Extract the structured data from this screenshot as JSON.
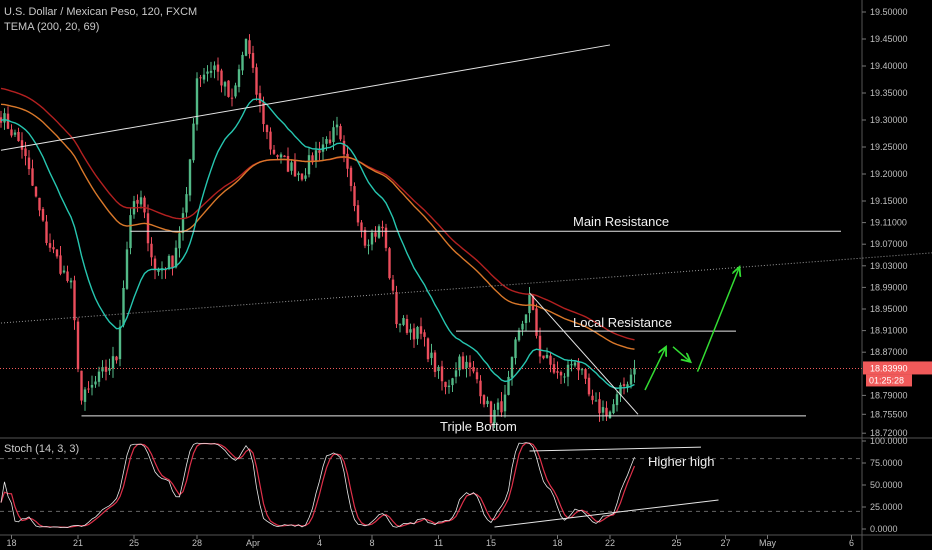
{
  "header": {
    "title": "U.S. Dollar / Mexican Peso, 120, FXCM",
    "indicator": "TEMA (200, 20, 69)"
  },
  "stoch_label": "Stoch (14, 3, 3)",
  "colors": {
    "bull": "#53b987",
    "bear": "#eb4d5c",
    "fast": "#26c6b0",
    "mid": "#d9782a",
    "slow": "#b32020",
    "stoch_k": "#e8e8e8",
    "stoch_d": "#e0304a",
    "arrow": "#33dd33",
    "price": "#f05a5a"
  },
  "chart_data": {
    "type": "candlestick",
    "symbol": "USDMXN",
    "timeframe": "120",
    "price_ticks": [
      "19.50000",
      "19.45000",
      "19.40000",
      "19.35000",
      "19.30000",
      "19.25000",
      "19.20000",
      "19.15000",
      "19.11000",
      "19.07000",
      "19.03000",
      "18.99000",
      "18.95000",
      "18.91000",
      "18.87000",
      "18.79000",
      "18.75500",
      "18.72000"
    ],
    "price_tick_values": [
      19.5,
      19.45,
      19.4,
      19.35,
      19.3,
      19.25,
      19.2,
      19.15,
      19.11,
      19.07,
      19.03,
      18.99,
      18.95,
      18.91,
      18.87,
      18.79,
      18.755,
      18.72
    ],
    "ylim": [
      18.7,
      19.52
    ],
    "current_price": "18.83990",
    "current_price_value": 18.8399,
    "countdown": "01:25:28",
    "x_ticks": [
      "18",
      "21",
      "25",
      "28",
      "Apr",
      "4",
      "8",
      "11",
      "15",
      "18",
      "22",
      "25",
      "27",
      "May",
      "6"
    ],
    "x_tick_bars": [
      3,
      22,
      38,
      56,
      72,
      91,
      106,
      125,
      140,
      159,
      174,
      193,
      207,
      219,
      243
    ],
    "close_keypoints": [
      [
        0,
        19.31
      ],
      [
        6,
        19.25
      ],
      [
        13,
        19.08
      ],
      [
        20,
        18.99
      ],
      [
        23,
        18.78
      ],
      [
        29,
        18.83
      ],
      [
        33,
        18.86
      ],
      [
        37,
        19.13
      ],
      [
        40,
        19.15
      ],
      [
        44,
        19.02
      ],
      [
        49,
        19.04
      ],
      [
        53,
        19.15
      ],
      [
        56,
        19.38
      ],
      [
        61,
        19.4
      ],
      [
        66,
        19.33
      ],
      [
        70,
        19.45
      ],
      [
        73,
        19.35
      ],
      [
        77,
        19.25
      ],
      [
        81,
        19.22
      ],
      [
        86,
        19.2
      ],
      [
        91,
        19.25
      ],
      [
        96,
        19.28
      ],
      [
        100,
        19.17
      ],
      [
        104,
        19.08
      ],
      [
        109,
        19.1
      ],
      [
        113,
        18.93
      ],
      [
        120,
        18.9
      ],
      [
        127,
        18.8
      ],
      [
        131,
        18.86
      ],
      [
        136,
        18.82
      ],
      [
        140,
        18.75
      ],
      [
        144,
        18.78
      ],
      [
        147,
        18.88
      ],
      [
        151,
        18.97
      ],
      [
        154,
        18.87
      ],
      [
        160,
        18.82
      ],
      [
        164,
        18.86
      ],
      [
        169,
        18.77
      ],
      [
        174,
        18.76
      ],
      [
        179,
        18.82
      ],
      [
        181,
        18.84
      ]
    ],
    "ma_seeds": {
      "fast": 19.3,
      "mid": 19.33,
      "slow": 19.36
    },
    "ma_periods": {
      "fast": 20,
      "mid": 69,
      "slow": 200
    },
    "stoch_params": [
      14,
      3,
      3
    ],
    "stoch_ticks": [
      "100.0000",
      "75.0000",
      "50.0000",
      "25.0000",
      "0.0000"
    ],
    "stoch_tick_values": [
      100,
      75,
      50,
      25,
      0
    ],
    "stoch_levels": [
      80,
      20
    ],
    "annotations": [
      {
        "label": "Main Resistance",
        "price": 19.094,
        "from_bar": 37,
        "to_bar": 240
      },
      {
        "label": "Local Resistance",
        "price": 18.909,
        "from_bar": 130,
        "to_bar": 210
      },
      {
        "label": "Triple Bottom",
        "price": 18.752,
        "from_bar": 23,
        "to_bar": 230
      }
    ],
    "trendlines": [
      {
        "name": "rising-channel-top",
        "p1": [
          0,
          19.244
        ],
        "p2": [
          174,
          19.439
        ],
        "style": "solid"
      },
      {
        "name": "rising-dotted",
        "p1": [
          0,
          18.924
        ],
        "p2": [
          266,
          19.054
        ],
        "style": "dotted"
      },
      {
        "name": "falling-wedge",
        "p1": [
          151,
          18.98
        ],
        "p2": [
          182,
          18.755
        ],
        "style": "solid"
      }
    ],
    "arrows": [
      {
        "p1": [
          184,
          18.8
        ],
        "p2": [
          190,
          18.88
        ]
      },
      {
        "p1": [
          192,
          18.88
        ],
        "p2": [
          197,
          18.852
        ]
      },
      {
        "p1": [
          199,
          18.834
        ],
        "p2": [
          211,
          19.028
        ]
      }
    ],
    "stoch_annotations": {
      "label": "Higher high",
      "upper": {
        "p1": [
          151,
          88.6
        ],
        "p2": [
          200,
          93
        ]
      },
      "lower": {
        "p1": [
          141,
          2.3
        ],
        "p2": [
          205,
          33
        ]
      }
    }
  }
}
